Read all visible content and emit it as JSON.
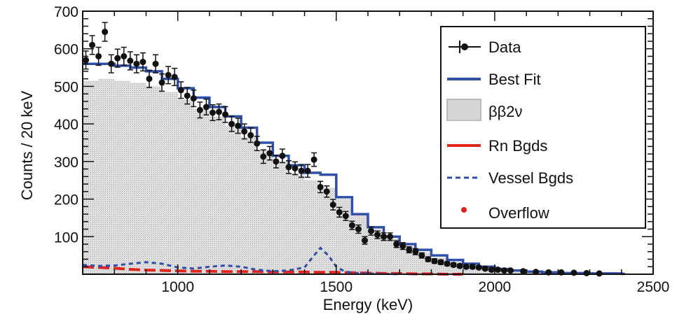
{
  "chart_data": {
    "type": "line",
    "title": "",
    "xlabel": "Energy (keV)",
    "ylabel": "Counts / 20 keV",
    "xlim": [
      700,
      2500
    ],
    "ylim": [
      0,
      700
    ],
    "x_ticks": [
      "1000",
      "1500",
      "2000",
      "2500"
    ],
    "y_ticks": [
      "100",
      "200",
      "300",
      "400",
      "500",
      "600",
      "700"
    ],
    "legend_position": "top-right",
    "grid": false,
    "legend": {
      "data": "Data",
      "best_fit": "Best Fit",
      "bb2v": "ββ2ν",
      "rn": "Rn Bgds",
      "vessel": "Vessel Bgds",
      "overflow": "Overflow"
    },
    "colors": {
      "data": "#111111",
      "best_fit": "#2f4fa8",
      "bb2v_fill": "#d4d4d4",
      "rn": "#e0231c",
      "vessel": "#2f4fa8",
      "overflow": "#e0231c"
    },
    "series": [
      {
        "name": "Data",
        "kind": "points_with_errors",
        "x": [
          710,
          730,
          750,
          770,
          790,
          810,
          830,
          850,
          870,
          890,
          910,
          930,
          950,
          970,
          990,
          1010,
          1030,
          1050,
          1070,
          1090,
          1110,
          1130,
          1150,
          1170,
          1190,
          1210,
          1230,
          1250,
          1270,
          1290,
          1310,
          1330,
          1350,
          1370,
          1390,
          1410,
          1430,
          1450,
          1470,
          1490,
          1510,
          1530,
          1550,
          1570,
          1590,
          1610,
          1630,
          1650,
          1670,
          1690,
          1710,
          1730,
          1750,
          1770,
          1790,
          1810,
          1830,
          1850,
          1870,
          1890,
          1910,
          1930,
          1950,
          1970,
          1990,
          2010,
          2030,
          2050,
          2090,
          2130,
          2170,
          2210,
          2250,
          2290,
          2330
        ],
        "y": [
          570,
          610,
          580,
          645,
          560,
          575,
          580,
          568,
          560,
          565,
          520,
          560,
          510,
          530,
          525,
          490,
          475,
          468,
          437,
          445,
          430,
          432,
          425,
          400,
          395,
          380,
          370,
          348,
          313,
          322,
          300,
          315,
          285,
          282,
          275,
          275,
          305,
          232,
          220,
          185,
          165,
          155,
          130,
          120,
          90,
          115,
          105,
          100,
          100,
          80,
          75,
          65,
          60,
          50,
          40,
          35,
          32,
          28,
          25,
          22,
          20,
          20,
          18,
          15,
          12,
          12,
          10,
          10,
          8,
          6,
          5,
          5,
          4,
          3,
          2
        ],
        "errors": [
          24,
          25,
          24,
          25,
          24,
          24,
          24,
          24,
          24,
          24,
          23,
          24,
          23,
          23,
          23,
          22,
          22,
          22,
          21,
          21,
          21,
          21,
          21,
          20,
          20,
          20,
          19,
          19,
          18,
          18,
          17,
          18,
          17,
          17,
          17,
          17,
          18,
          15,
          15,
          14,
          13,
          12,
          11,
          11,
          10,
          11,
          10,
          10,
          10,
          9,
          9,
          8,
          8,
          7,
          6,
          6,
          6,
          5,
          5,
          5,
          5,
          5,
          4,
          4,
          4,
          4,
          3,
          3,
          3,
          3,
          2,
          2,
          2,
          2,
          2
        ]
      },
      {
        "name": "Best Fit",
        "kind": "step",
        "x": [
          700,
          750,
          800,
          850,
          900,
          950,
          1000,
          1050,
          1100,
          1150,
          1200,
          1250,
          1300,
          1350,
          1400,
          1450,
          1500,
          1550,
          1600,
          1650,
          1700,
          1750,
          1800,
          1850,
          1900,
          1950,
          2000,
          2050,
          2100,
          2150,
          2200,
          2300,
          2400
        ],
        "y": [
          560,
          560,
          555,
          550,
          540,
          520,
          495,
          470,
          445,
          420,
          390,
          350,
          315,
          290,
          270,
          265,
          205,
          160,
          125,
          100,
          80,
          65,
          50,
          38,
          28,
          20,
          14,
          10,
          7,
          5,
          3,
          2,
          1
        ]
      },
      {
        "name": "ββ2ν",
        "kind": "filled_step",
        "x": [
          700,
          750,
          800,
          850,
          900,
          950,
          1000,
          1050,
          1100,
          1150,
          1200,
          1250,
          1300,
          1350,
          1400,
          1450,
          1500,
          1550,
          1600,
          1650,
          1700,
          1750,
          1800,
          1850,
          1900,
          1950,
          2000,
          2050,
          2100,
          2150,
          2200,
          2300,
          2400
        ],
        "y": [
          515,
          520,
          515,
          510,
          500,
          485,
          465,
          440,
          420,
          395,
          365,
          330,
          300,
          270,
          250,
          230,
          200,
          160,
          120,
          95,
          75,
          58,
          44,
          33,
          24,
          17,
          11,
          8,
          5,
          3,
          2,
          1,
          0
        ]
      },
      {
        "name": "Rn Bgds",
        "kind": "dashed_line",
        "x": [
          700,
          750,
          800,
          850,
          900,
          950,
          1000,
          1050,
          1100,
          1150,
          1200,
          1250,
          1300,
          1350,
          1400,
          1450,
          1500,
          1550,
          1600,
          1650,
          1700,
          1750,
          1800,
          1850,
          1900
        ],
        "y": [
          20,
          18,
          16,
          13,
          11,
          10,
          9,
          8,
          8,
          7,
          7,
          7,
          6,
          6,
          6,
          5,
          5,
          4,
          3,
          2,
          2,
          1,
          1,
          0,
          0
        ]
      },
      {
        "name": "Vessel Bgds",
        "kind": "dashed_line",
        "x": [
          700,
          750,
          800,
          850,
          900,
          950,
          1000,
          1050,
          1100,
          1150,
          1200,
          1250,
          1300,
          1350,
          1400,
          1425,
          1450,
          1475,
          1500,
          1525,
          1550,
          1600,
          1650,
          1700
        ],
        "y": [
          25,
          22,
          23,
          28,
          32,
          28,
          18,
          15,
          20,
          23,
          20,
          12,
          8,
          10,
          18,
          45,
          70,
          50,
          20,
          8,
          4,
          2,
          1,
          0
        ]
      }
    ]
  }
}
